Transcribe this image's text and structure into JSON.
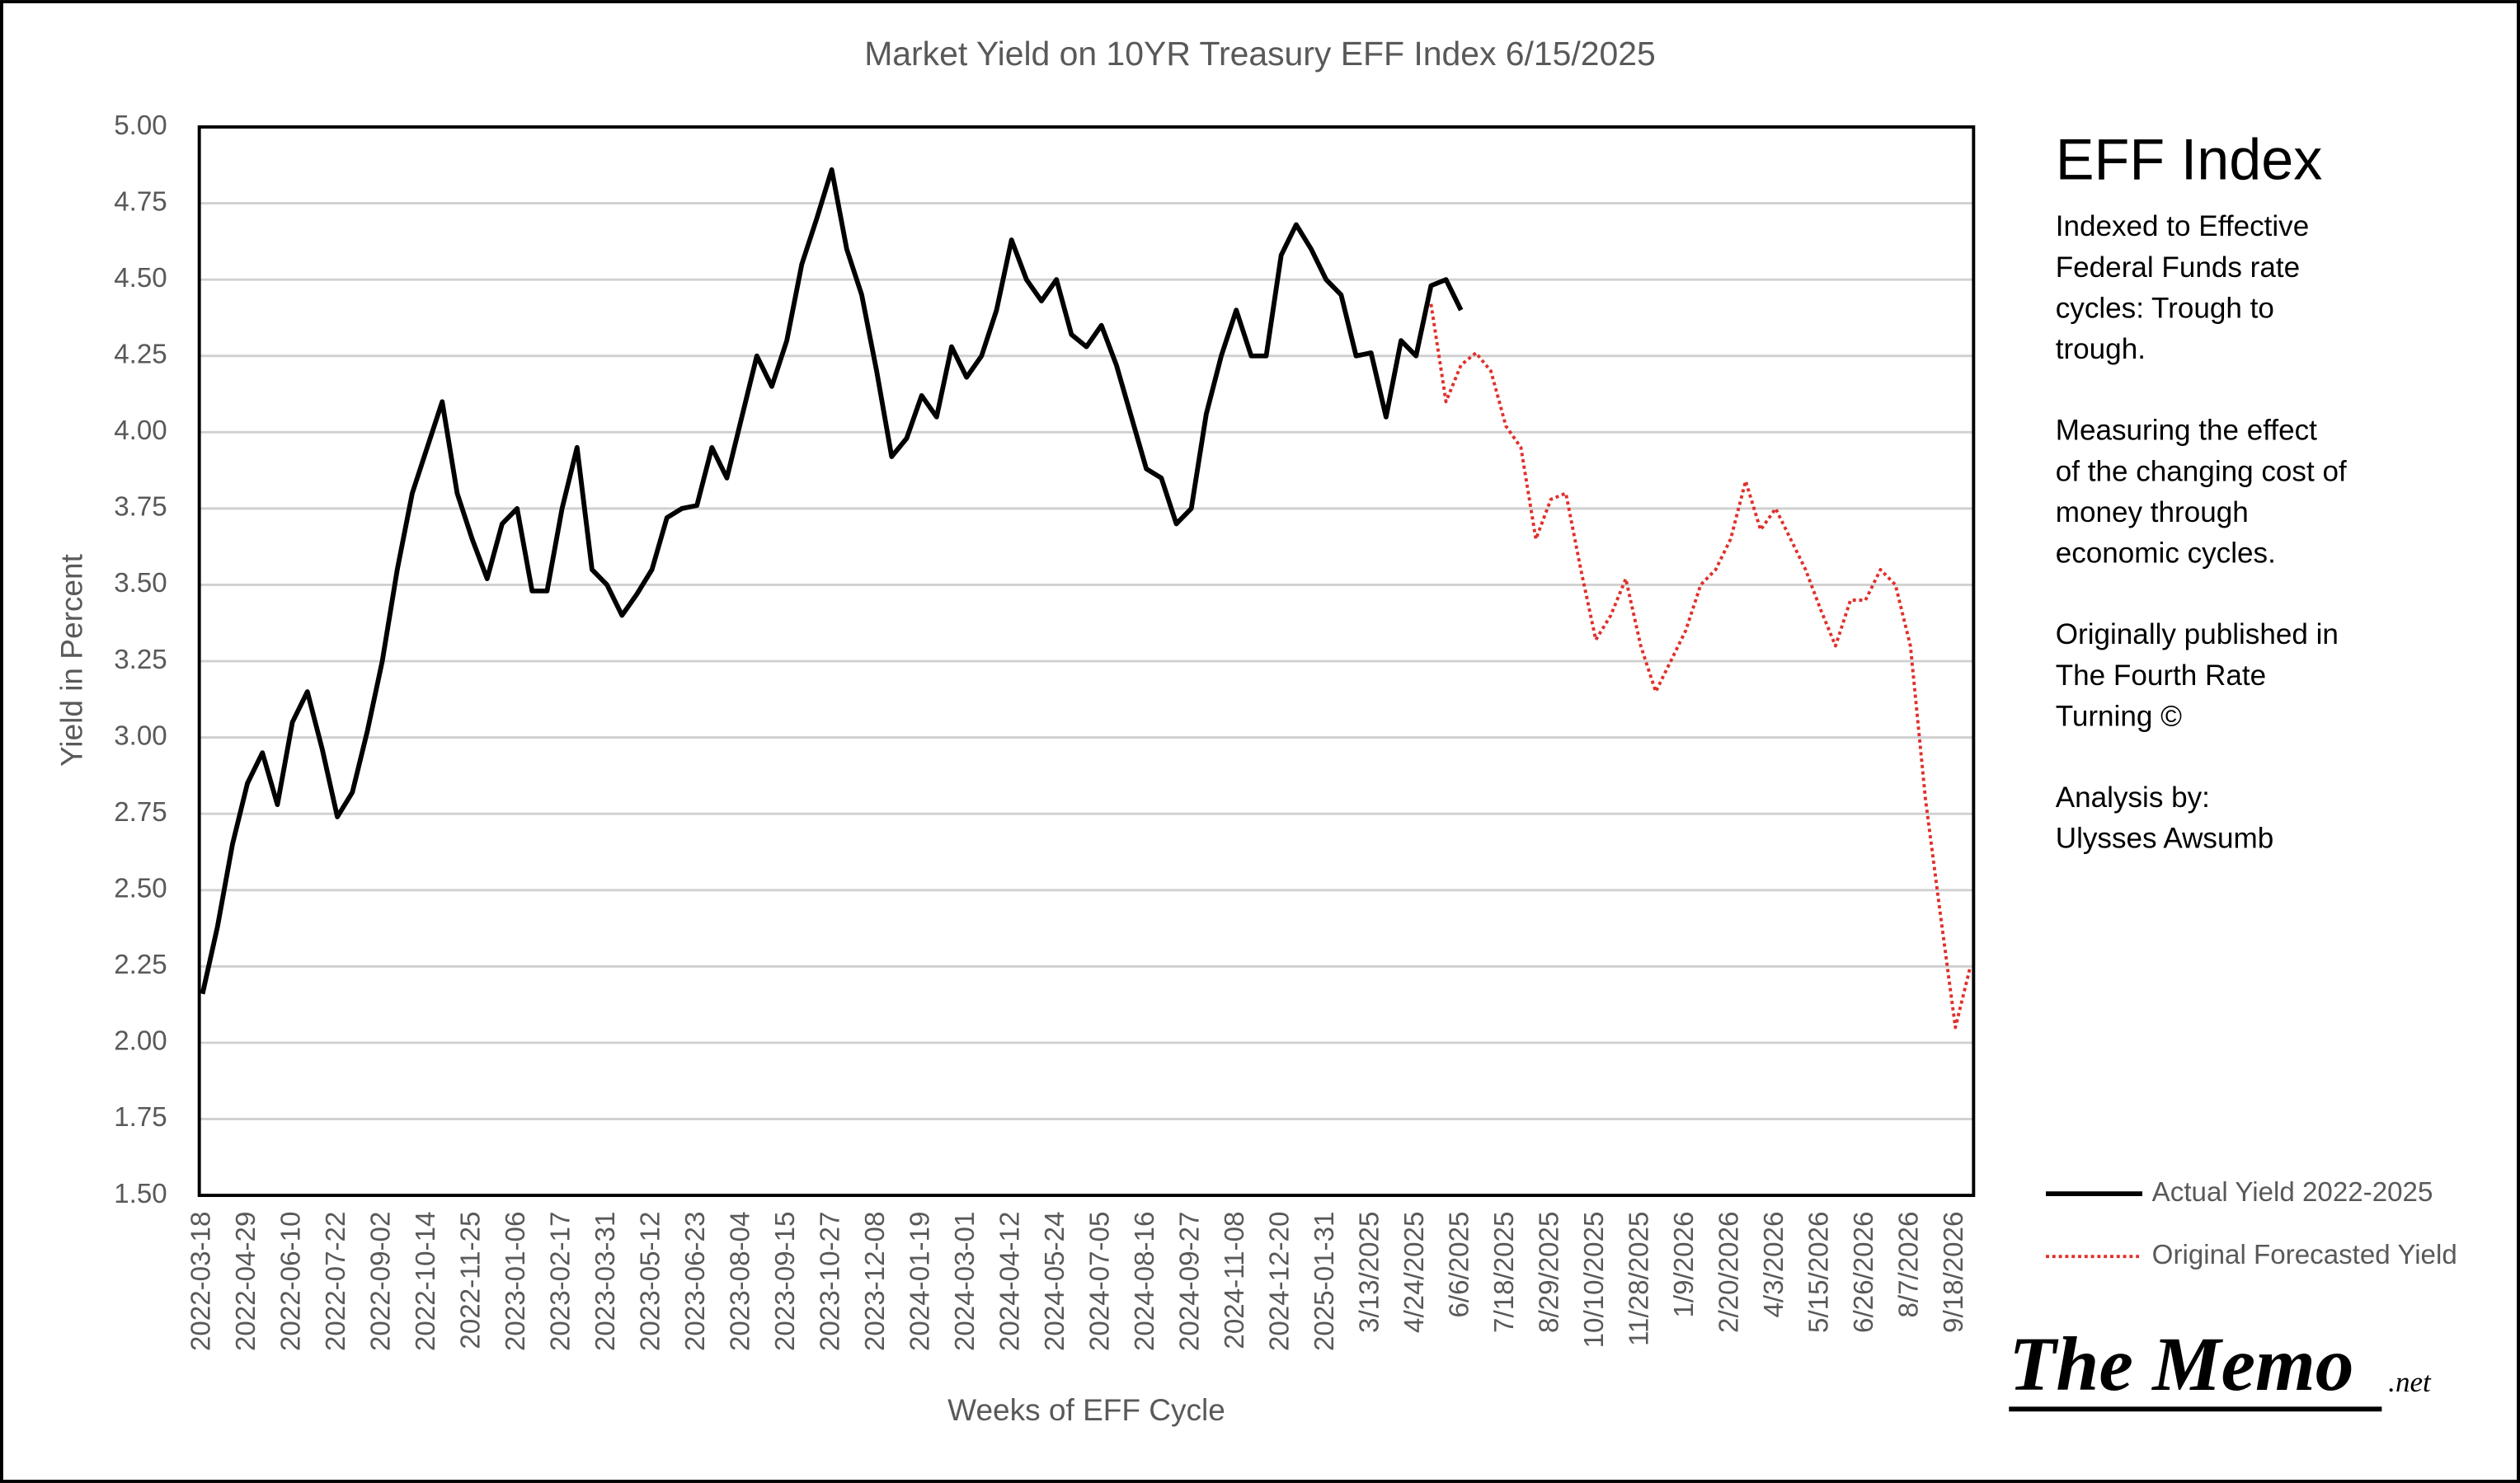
{
  "chart_data": {
    "type": "line",
    "title": "Market Yield on 10YR Treasury EFF Index 6/15/2025",
    "x_label": "Weeks of EFF Cycle",
    "y_label": "Yield in Percent",
    "ylim": [
      1.5,
      5.0
    ],
    "yticks": [
      {
        "value": 1.5,
        "label": "1.50"
      },
      {
        "value": 1.75,
        "label": "1.75"
      },
      {
        "value": 2,
        "label": "2.00"
      },
      {
        "value": 2.25,
        "label": "2.25"
      },
      {
        "value": 2.5,
        "label": "2.50"
      },
      {
        "value": 2.75,
        "label": "2.75"
      },
      {
        "value": 3,
        "label": "3.00"
      },
      {
        "value": 3.25,
        "label": "3.25"
      },
      {
        "value": 3.5,
        "label": "3.50"
      },
      {
        "value": 3.75,
        "label": "3.75"
      },
      {
        "value": 4,
        "label": "4.00"
      },
      {
        "value": 4.25,
        "label": "4.25"
      },
      {
        "value": 4.5,
        "label": "4.50"
      },
      {
        "value": 4.75,
        "label": "4.75"
      },
      {
        "value": 5,
        "label": "5.00"
      }
    ],
    "grid": true,
    "legend": "lower right",
    "categories": [
      "2022-03-18",
      null,
      null,
      "2022-04-29",
      null,
      null,
      "2022-06-10",
      null,
      null,
      "2022-07-22",
      null,
      null,
      "2022-09-02",
      null,
      null,
      "2022-10-14",
      null,
      null,
      "2022-11-25",
      null,
      null,
      "2023-01-06",
      null,
      null,
      "2023-02-17",
      null,
      null,
      "2023-03-31",
      null,
      null,
      "2023-05-12",
      null,
      null,
      "2023-06-23",
      null,
      null,
      "2023-08-04",
      null,
      null,
      "2023-09-15",
      null,
      null,
      "2023-10-27",
      null,
      null,
      "2023-12-08",
      null,
      null,
      "2024-01-19",
      null,
      null,
      "2024-03-01",
      null,
      null,
      "2024-04-12",
      null,
      null,
      "2024-05-24",
      null,
      null,
      "2024-07-05",
      null,
      null,
      "2024-08-16",
      null,
      null,
      "2024-09-27",
      null,
      null,
      "2024-11-08",
      null,
      null,
      "2024-12-20",
      null,
      null,
      "2025-01-31",
      null,
      null,
      "3/13/2025",
      null,
      null,
      "4/24/2025",
      null,
      null,
      "6/6/2025",
      null,
      null,
      "7/18/2025",
      null,
      null,
      "8/29/2025",
      null,
      null,
      "10/10/2025",
      null,
      null,
      "11/28/2025",
      null,
      null,
      "1/9/2026",
      null,
      null,
      "2/20/2026",
      null,
      null,
      "4/3/2026",
      null,
      null,
      "5/15/2026",
      null,
      null,
      "6/26/2026",
      null,
      null,
      "8/7/2026",
      null,
      null,
      "9/18/2026",
      null
    ],
    "series": [
      {
        "name": "Actual Yield 2022-2025",
        "color": "#000000",
        "line_style": "solid",
        "values": [
          2.16,
          2.38,
          2.65,
          2.85,
          2.95,
          2.78,
          3.05,
          3.15,
          2.96,
          2.74,
          2.82,
          3.02,
          3.25,
          3.55,
          3.8,
          3.95,
          4.1,
          3.8,
          3.65,
          3.52,
          3.7,
          3.75,
          3.48,
          3.48,
          3.75,
          3.95,
          3.55,
          3.5,
          3.4,
          3.47,
          3.55,
          3.72,
          3.75,
          3.76,
          3.95,
          3.85,
          4.05,
          4.25,
          4.15,
          4.3,
          4.55,
          4.7,
          4.86,
          4.6,
          4.45,
          4.2,
          3.92,
          3.98,
          4.12,
          4.05,
          4.28,
          4.18,
          4.25,
          4.4,
          4.63,
          4.5,
          4.43,
          4.5,
          4.32,
          4.28,
          4.35,
          4.22,
          4.05,
          3.88,
          3.85,
          3.7,
          3.75,
          4.06,
          4.25,
          4.4,
          4.25,
          4.25,
          4.58,
          4.68,
          4.6,
          4.5,
          4.45,
          4.25,
          4.26,
          4.05,
          4.3,
          4.25,
          4.48,
          4.5,
          4.4,
          null,
          null,
          null,
          null,
          null,
          null,
          null,
          null,
          null,
          null,
          null,
          null,
          null,
          null,
          null,
          null,
          null,
          null,
          null,
          null,
          null,
          null,
          null,
          null,
          null,
          null,
          null,
          null,
          null,
          null,
          null,
          null,
          null,
          null
        ]
      },
      {
        "name": "Original Forecasted Yield",
        "color": "#e0302a",
        "line_style": "dotted",
        "values": [
          null,
          null,
          null,
          null,
          null,
          null,
          null,
          null,
          null,
          null,
          null,
          null,
          null,
          null,
          null,
          null,
          null,
          null,
          null,
          null,
          null,
          null,
          null,
          null,
          null,
          null,
          null,
          null,
          null,
          null,
          null,
          null,
          null,
          null,
          null,
          null,
          null,
          null,
          null,
          null,
          null,
          null,
          null,
          null,
          null,
          null,
          null,
          null,
          null,
          null,
          null,
          null,
          null,
          null,
          null,
          null,
          null,
          null,
          null,
          null,
          null,
          null,
          null,
          null,
          null,
          null,
          null,
          null,
          null,
          null,
          null,
          null,
          null,
          null,
          null,
          null,
          null,
          null,
          null,
          null,
          null,
          null,
          4.42,
          4.1,
          4.22,
          4.26,
          4.2,
          4.02,
          3.95,
          3.65,
          3.78,
          3.8,
          3.55,
          3.32,
          3.4,
          3.52,
          3.3,
          3.15,
          3.25,
          3.35,
          3.5,
          3.55,
          3.65,
          3.84,
          3.68,
          3.75,
          3.65,
          3.55,
          3.42,
          3.3,
          3.45,
          3.45,
          3.55,
          3.5,
          3.3,
          2.8,
          2.42,
          2.05,
          2.25
        ]
      }
    ]
  },
  "sidebar": {
    "heading": "EFF Index",
    "paragraphs": [
      [
        "Indexed to Effective",
        "Federal Funds rate",
        "cycles: Trough to",
        "trough."
      ],
      [
        "Measuring the effect",
        "of the changing cost of",
        "money through",
        "economic cycles."
      ],
      [
        "Originally published in",
        "The Fourth Rate",
        "Turning ©"
      ],
      [
        "Analysis by:",
        " Ulysses Awsumb"
      ]
    ]
  },
  "logo": {
    "name": "The Memo",
    "suffix": ".net"
  }
}
